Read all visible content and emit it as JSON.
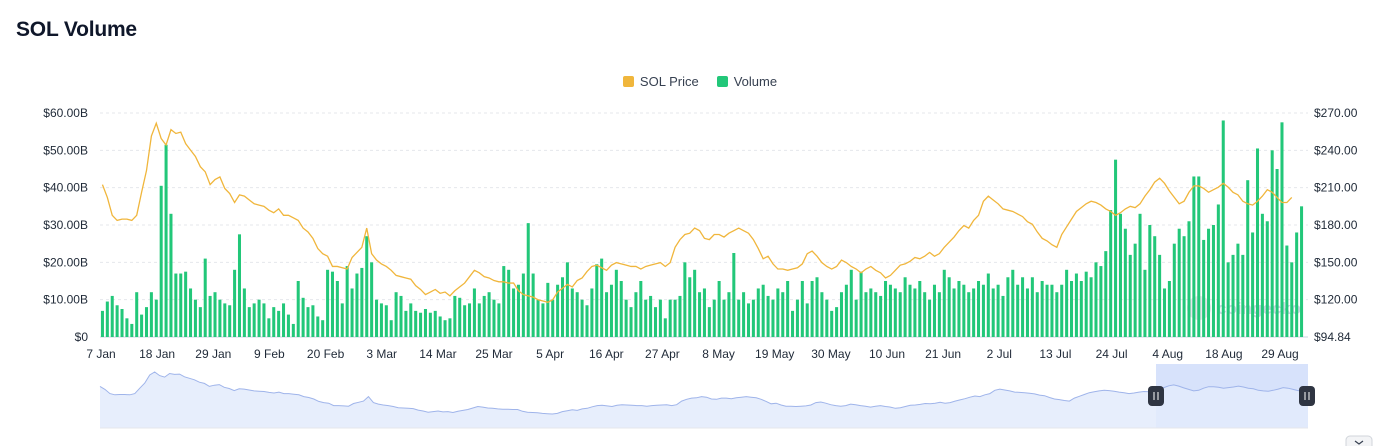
{
  "page": {
    "title": "SOL Volume"
  },
  "legend": {
    "price_label": "SOL Price",
    "volume_label": "Volume"
  },
  "watermark": {
    "text": "coingecko"
  },
  "colors": {
    "price": "#f0b63c",
    "volume": "#22c779",
    "navigator": "#a9bdf0",
    "navigator_fill": "#e3ebfb",
    "selection": "#d3dffb"
  },
  "chart_data": {
    "type": "bar",
    "x_range": [
      "7 Jan",
      "4 Sep"
    ],
    "x_tick_labels": [
      "7 Jan",
      "18 Jan",
      "29 Jan",
      "9 Feb",
      "20 Feb",
      "3 Mar",
      "14 Mar",
      "25 Mar",
      "5 Apr",
      "16 Apr",
      "27 Apr",
      "8 May",
      "19 May",
      "30 May",
      "10 Jun",
      "21 Jun",
      "2 Jul",
      "13 Jul",
      "24 Jul",
      "4 Aug",
      "18 Aug",
      "29 Aug"
    ],
    "y_left": {
      "label": "",
      "ylim": [
        0,
        60
      ],
      "unit": "B",
      "tick_labels": [
        "$0",
        "$10.00B",
        "$20.00B",
        "$30.00B",
        "$40.00B",
        "$50.00B",
        "$60.00B"
      ]
    },
    "y_right": {
      "label": "",
      "ylim": [
        94.84,
        270
      ],
      "tick_labels": [
        "$94.84",
        "$120.00",
        "$150.00",
        "$180.00",
        "$210.00",
        "$240.00",
        "$270.00"
      ]
    },
    "grid": true,
    "legend_position": "top-center",
    "series": [
      {
        "name": "Volume",
        "type": "bar",
        "axis": "left",
        "values": [
          7,
          9.5,
          11,
          8.5,
          7.5,
          5,
          3.5,
          12,
          6,
          8,
          12,
          10,
          40.5,
          51.5,
          33,
          17,
          17,
          17.5,
          13,
          10,
          8,
          21,
          11,
          12,
          10,
          9,
          8.5,
          18,
          27.5,
          13,
          8,
          9,
          10,
          9,
          5,
          8,
          7,
          9,
          6,
          3.5,
          15,
          10.5,
          8,
          8.5,
          5.5,
          4.5,
          18,
          17.5,
          15,
          9,
          19,
          13,
          17,
          18.5,
          27,
          20,
          10,
          9,
          8.5,
          4.5,
          12,
          11,
          7,
          9,
          7,
          6.5,
          7.5,
          6.5,
          7,
          5.5,
          4.5,
          5,
          11,
          10.5,
          8.5,
          9,
          13,
          9,
          11,
          12,
          10,
          9,
          19,
          18,
          13,
          14,
          17,
          30.5,
          17,
          10,
          9,
          14.5,
          10,
          14,
          16,
          20,
          13,
          12,
          10,
          8.5,
          13,
          19.5,
          21,
          12,
          14,
          18,
          15,
          10,
          8,
          12,
          15,
          10,
          11,
          8,
          10,
          5,
          10,
          10,
          11,
          20,
          16,
          18,
          12,
          13,
          8,
          10,
          15,
          10,
          12,
          22.5,
          10,
          12,
          9,
          10,
          13,
          14,
          11,
          10,
          13,
          12,
          15,
          7,
          10,
          15,
          9,
          15,
          16,
          12,
          10,
          7,
          8,
          12,
          14,
          18,
          10,
          17.5,
          12,
          13,
          12,
          11,
          15,
          14,
          13,
          12,
          16,
          14,
          13,
          15,
          12,
          10,
          14,
          12,
          18,
          16,
          13,
          15,
          14,
          12,
          13,
          15,
          14,
          17,
          13,
          14,
          11,
          16,
          18,
          14,
          16,
          13,
          16,
          12,
          15,
          14,
          14,
          12,
          14,
          18,
          15,
          17,
          15,
          17.5,
          16,
          20,
          19,
          23,
          34,
          47.5,
          33,
          29,
          22,
          25,
          33,
          18,
          30,
          27,
          22,
          13,
          15,
          25,
          29,
          27,
          31,
          43,
          43,
          26,
          29,
          30,
          35.5,
          58,
          20,
          22,
          25,
          22,
          42,
          28,
          50.5,
          33,
          31,
          50,
          45,
          57.5,
          24.5,
          20,
          28,
          35
        ]
      },
      {
        "name": "SOL Price",
        "type": "line",
        "axis": "right",
        "values": [
          214,
          204,
          190,
          186,
          187,
          187,
          186,
          190,
          208,
          225,
          252,
          262,
          250,
          245,
          257,
          254,
          255,
          246,
          241,
          236,
          228,
          224,
          214,
          218,
          220,
          211,
          207,
          200,
          206,
          205,
          202,
          199,
          198,
          197,
          194,
          192,
          195,
          190,
          190,
          188,
          186,
          180,
          177,
          172,
          164,
          160,
          158,
          150,
          150,
          149,
          148,
          157,
          161,
          165,
          180,
          160,
          155,
          152,
          150,
          147,
          143,
          142,
          141,
          140,
          135,
          132,
          128,
          130,
          132,
          129,
          130,
          127,
          131,
          134,
          137,
          142,
          147,
          145,
          142,
          141,
          139,
          138,
          138,
          137,
          137,
          131,
          128,
          127,
          126,
          124,
          123,
          122,
          124,
          130,
          133,
          136,
          134,
          139,
          141,
          146,
          150,
          151,
          149,
          147,
          151,
          153,
          152,
          151,
          150,
          150,
          148,
          150,
          151,
          152,
          153,
          150,
          153,
          165,
          171,
          175,
          176,
          180,
          178,
          172,
          171,
          175,
          175,
          173,
          176,
          178,
          180,
          178,
          176,
          171,
          164,
          156,
          158,
          152,
          148,
          148,
          147,
          148,
          149,
          152,
          160,
          162,
          158,
          153,
          150,
          148,
          150,
          155,
          153,
          150,
          148,
          145,
          148,
          150,
          147,
          145,
          141,
          143,
          147,
          151,
          152,
          154,
          157,
          156,
          158,
          161,
          158,
          160,
          165,
          169,
          173,
          178,
          182,
          180,
          186,
          190,
          201,
          205,
          202,
          199,
          195,
          194,
          193,
          191,
          189,
          185,
          183,
          177,
          172,
          170,
          167,
          165,
          175,
          181,
          187,
          193,
          196,
          199,
          201,
          200,
          198,
          195,
          193,
          190,
          192,
          195,
          197,
          196,
          199,
          205,
          210,
          216,
          219,
          215,
          209,
          204,
          199,
          201,
          208,
          213,
          213,
          211,
          208,
          210,
          212,
          215,
          212,
          208,
          206,
          201,
          199,
          198,
          201,
          205,
          210,
          208,
          204,
          200,
          200,
          204
        ]
      }
    ]
  }
}
